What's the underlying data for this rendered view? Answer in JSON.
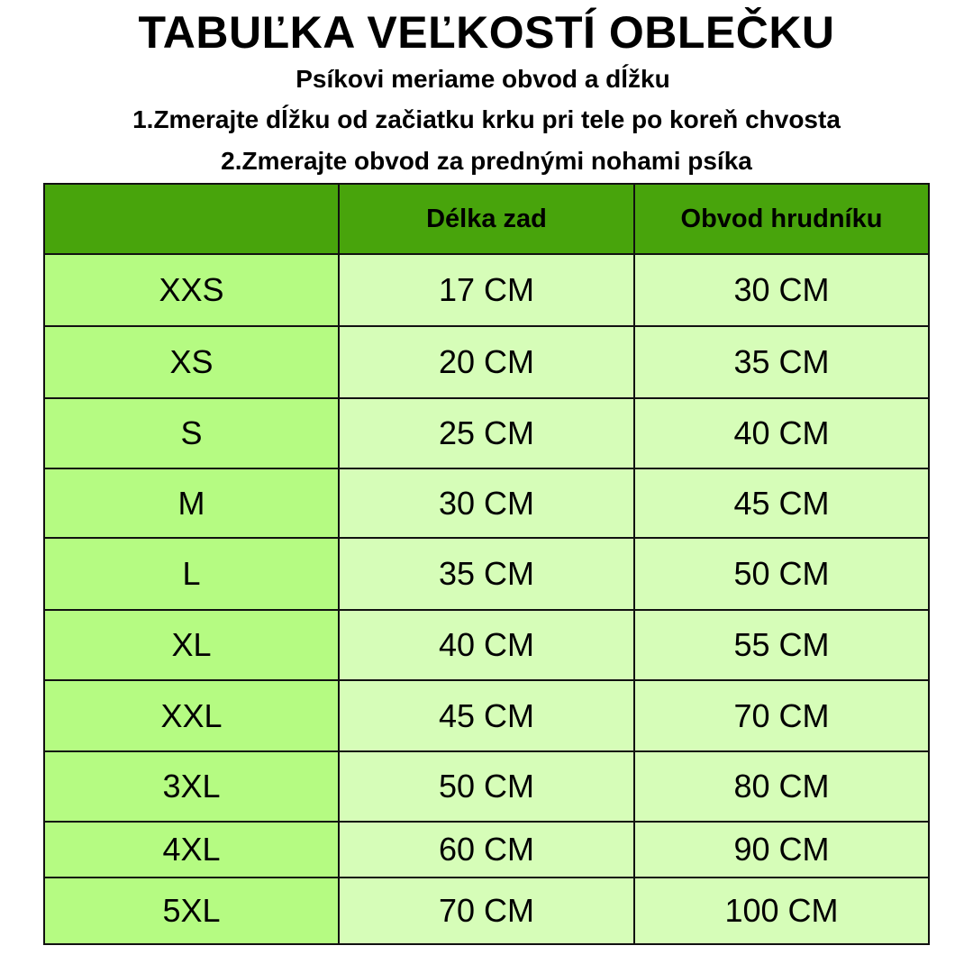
{
  "title": "TABUĽKA VEĽKOSTÍ OBLEČKU",
  "subtitle": "Psíkovi meriame obvod a dĺžku",
  "instructions": [
    "1.Zmerajte dĺžku od začiatku krku pri tele po koreň chvosta",
    "2.Zmerajte obvod za prednými nohami psíka"
  ],
  "table": {
    "headers": [
      "",
      "Délka zad",
      "Obvod hrudníku"
    ],
    "rows": [
      [
        "XXS",
        "17 CM",
        "30 CM"
      ],
      [
        "XS",
        "20 CM",
        "35 CM"
      ],
      [
        "S",
        "25 CM",
        "40 CM"
      ],
      [
        "M",
        "30 CM",
        "45 CM"
      ],
      [
        "L",
        "35 CM",
        "50 CM"
      ],
      [
        "XL",
        "40 CM",
        "55 CM"
      ],
      [
        "XXL",
        "45 CM",
        "70 CM"
      ],
      [
        "3XL",
        "50 CM",
        "80 CM"
      ],
      [
        "4XL",
        "60 CM",
        "90 CM"
      ],
      [
        "5XL",
        "70 CM",
        "100 CM"
      ]
    ]
  },
  "colors": {
    "header": "#48a40c",
    "size_column": "#b5fb82",
    "value_cells": "#d6fdb8"
  }
}
